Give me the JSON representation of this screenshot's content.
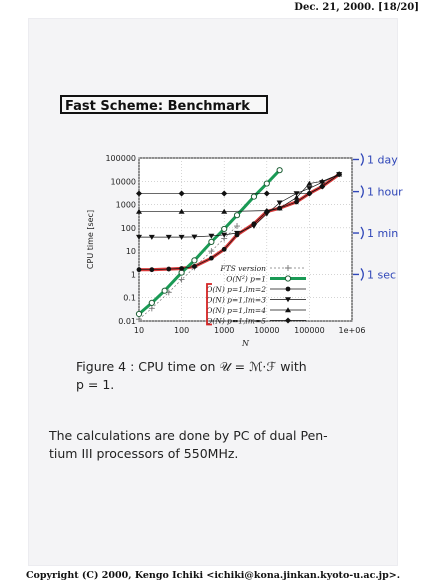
{
  "header": {
    "date": "Dec. 21, 2000. [18/20]"
  },
  "title": "Fast Scheme: Benchmark",
  "chart_data": {
    "type": "line",
    "xlabel": "N",
    "ylabel": "CPU time [sec]",
    "xscale": "log",
    "yscale": "log",
    "xlim": [
      10,
      1000000
    ],
    "ylim": [
      0.01,
      100000
    ],
    "xticks": [
      "10",
      "100",
      "1000",
      "10000",
      "100000",
      "1e+06"
    ],
    "yticks": [
      "0.01",
      "0.1",
      "1",
      "10",
      "100",
      "1000",
      "10000",
      "100000"
    ],
    "legend_position": "bottom-right",
    "series": [
      {
        "name": "FTS version",
        "marker": "plus",
        "color": "#777777",
        "x": [
          10,
          20,
          50,
          100,
          200,
          500,
          1000,
          2000
        ],
        "y": [
          0.012,
          0.035,
          0.17,
          0.6,
          2,
          10,
          35,
          120
        ]
      },
      {
        "name": "O(N²) p=1",
        "marker": "open-circle",
        "color": "#1a9a55",
        "x": [
          10,
          20,
          40,
          100,
          200,
          500,
          1000,
          2000,
          5000,
          10000,
          20000
        ],
        "y": [
          0.02,
          0.06,
          0.2,
          1.2,
          4,
          25,
          90,
          350,
          2200,
          8000,
          30000
        ]
      },
      {
        "name": "O(N) p=1,l_m=2",
        "marker": "filled-circle",
        "color": "#111111",
        "x": [
          10,
          20,
          50,
          100,
          200,
          500,
          1000,
          2000,
          5000,
          10000,
          20000,
          50000,
          100000,
          200000,
          500000
        ],
        "y": [
          1.6,
          1.6,
          1.7,
          1.8,
          2.2,
          5,
          12,
          50,
          150,
          500,
          700,
          1300,
          3000,
          6000,
          20000
        ]
      },
      {
        "name": "O(N) p=1,l_m=3",
        "marker": "triangle-down",
        "color": "#111111",
        "x": [
          10,
          20,
          50,
          100,
          200,
          500,
          1000,
          2000,
          5000,
          10000,
          20000,
          50000,
          100000,
          200000,
          500000
        ],
        "y": [
          40,
          40,
          40,
          40,
          41,
          45,
          50,
          60,
          120,
          400,
          1200,
          3000,
          5000,
          9000,
          20000
        ]
      },
      {
        "name": "O(N) p=1,l_m=4",
        "marker": "triangle-up",
        "color": "#111111",
        "x": [
          10,
          100,
          1000,
          10000,
          20000,
          50000,
          100000,
          200000,
          500000
        ],
        "y": [
          500,
          500,
          500,
          550,
          700,
          2000,
          8000,
          10000,
          20000
        ]
      },
      {
        "name": "O(N) p=1,l_m=5",
        "marker": "diamond",
        "color": "#111111",
        "x": [
          10,
          100,
          1000,
          10000,
          100000,
          200000,
          500000
        ],
        "y": [
          3000,
          3000,
          3000,
          3000,
          3000,
          6000,
          20000
        ]
      }
    ],
    "annotations": [
      {
        "text": "1 day",
        "y": 86400
      },
      {
        "text": "1 hour",
        "y": 3600
      },
      {
        "text": "1 min",
        "y": 60
      },
      {
        "text": "1 sec",
        "y": 1
      }
    ],
    "highlight_color": "#d42424",
    "green_color": "#1a9a55"
  },
  "caption": {
    "line1": "Figure 4 : CPU time on 𝒰 = ℳ·ℱ with",
    "line2": "p = 1."
  },
  "body": {
    "line1": "The calculations are done by PC of dual Pen-",
    "line2": "tium III processors of 550MHz."
  },
  "footer": "Copyright (C) 2000, Kengo Ichiki <ichiki@kona.jinkan.kyoto-u.ac.jp>."
}
